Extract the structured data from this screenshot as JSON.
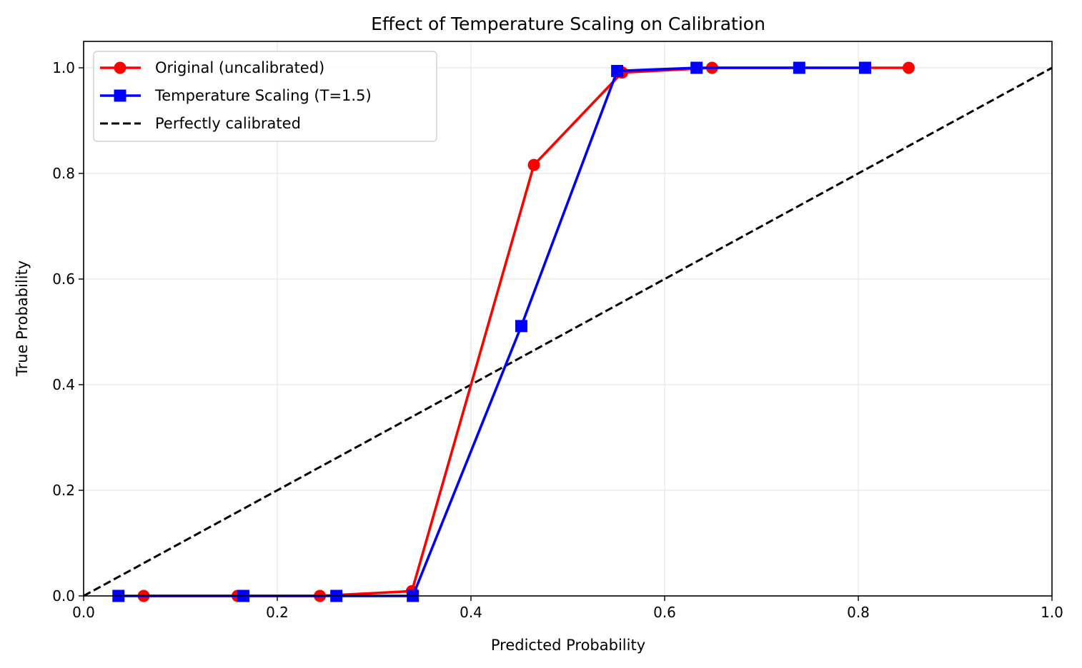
{
  "chart_data": {
    "type": "line",
    "title": "Effect of Temperature Scaling on Calibration",
    "xlabel": "Predicted Probability",
    "ylabel": "True Probability",
    "xlim": [
      0.0,
      1.0
    ],
    "ylim": [
      0.0,
      1.0
    ],
    "xticks": [
      0.0,
      0.2,
      0.4,
      0.6,
      0.8,
      1.0
    ],
    "xtick_labels": [
      "0.0",
      "0.2",
      "0.4",
      "0.6",
      "0.8",
      "1.0"
    ],
    "yticks": [
      0.0,
      0.2,
      0.4,
      0.6,
      0.8,
      1.0
    ],
    "ytick_labels": [
      "0.0",
      "0.2",
      "0.4",
      "0.6",
      "0.8",
      "1.0"
    ],
    "grid": true,
    "legend_position": "top-left",
    "series": [
      {
        "name": "Original (uncalibrated)",
        "color": "#ff0000",
        "marker": "circle",
        "line": "solid",
        "x": [
          0.062,
          0.159,
          0.244,
          0.339,
          0.465,
          0.556,
          0.649,
          0.852
        ],
        "y": [
          0.0,
          0.0,
          0.0,
          0.009,
          0.816,
          0.991,
          1.0,
          1.0
        ]
      },
      {
        "name": "Temperature Scaling (T=1.5)",
        "color": "#0000ff",
        "marker": "square",
        "line": "solid",
        "x": [
          0.036,
          0.165,
          0.261,
          0.34,
          0.452,
          0.551,
          0.633,
          0.739,
          0.807
        ],
        "y": [
          0.0,
          0.0,
          0.0,
          0.0,
          0.511,
          0.994,
          1.0,
          1.0,
          1.0
        ]
      },
      {
        "name": "Perfectly calibrated",
        "color": "#000000",
        "marker": "none",
        "line": "dashed",
        "x": [
          0.0,
          1.0
        ],
        "y": [
          0.0,
          1.0
        ]
      }
    ]
  }
}
